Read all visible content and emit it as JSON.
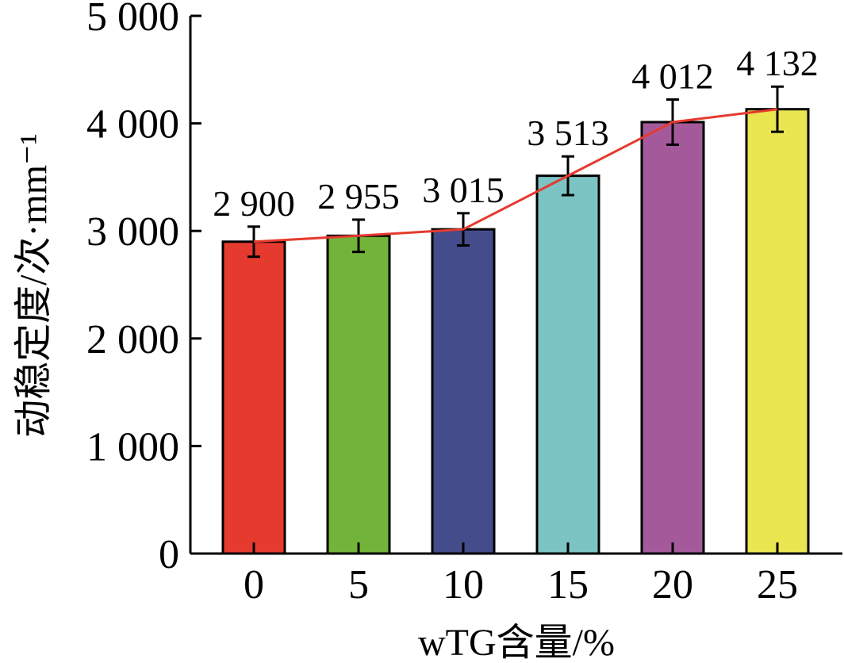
{
  "chart_data": {
    "type": "bar",
    "title": "",
    "xlabel": "wTG含量/%",
    "ylabel": "动稳定度/次·mm⁻¹",
    "categories": [
      "0",
      "5",
      "10",
      "15",
      "20",
      "25"
    ],
    "series": [
      {
        "values": [
          2900,
          2955,
          3015,
          3513,
          4012,
          4132
        ],
        "error": [
          140,
          150,
          150,
          180,
          210,
          210
        ],
        "colors": [
          "#E63A2E",
          "#72B43A",
          "#444C8C",
          "#7CC4C4",
          "#A45A9A",
          "#EAE652"
        ]
      }
    ],
    "data_labels": [
      "2 900",
      "2 955",
      "3 015",
      "3 513",
      "4 012",
      "4 132"
    ],
    "trend_line_color": "#E53A2E",
    "ylim": [
      0,
      5000
    ],
    "yticks": [
      0,
      1000,
      2000,
      3000,
      4000,
      5000
    ],
    "ytick_labels": [
      "0",
      "1 000",
      "2 000",
      "3 000",
      "4 000",
      "5 000"
    ],
    "grid": false,
    "legend": "none"
  }
}
